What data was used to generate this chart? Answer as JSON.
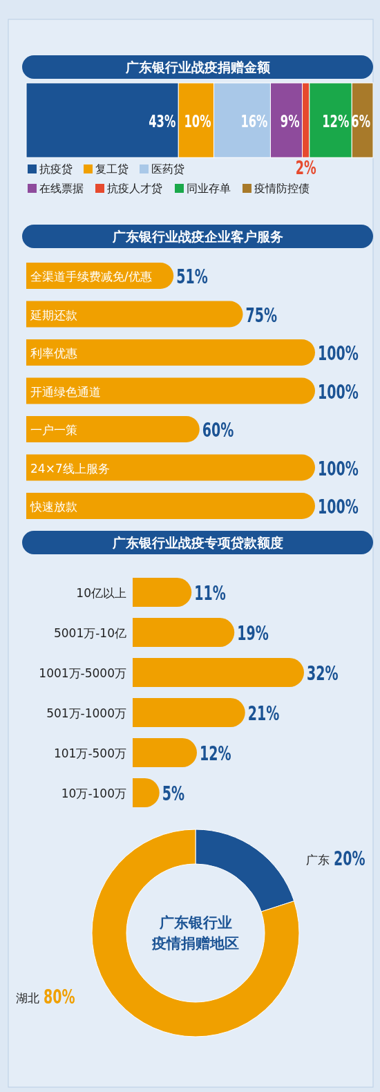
{
  "chart_data": [
    {
      "type": "bar",
      "title": "广东银行业战疫捐赠金额",
      "orientation": "horizontal",
      "stacked": true,
      "legend": "bottom",
      "categories": [
        null
      ],
      "series": [
        {
          "name": "抗疫贷",
          "color": "#1b5394",
          "values": [
            43
          ],
          "value_labels": [
            "43%"
          ]
        },
        {
          "name": "复工贷",
          "color": "#f0a000",
          "values": [
            10
          ],
          "value_labels": [
            "10%"
          ]
        },
        {
          "name": "医药贷",
          "color": "#a9c8e8",
          "values": [
            16
          ],
          "value_labels": [
            "16%"
          ]
        },
        {
          "name": "在线票据",
          "color": "#8e4b9c",
          "values": [
            9
          ],
          "value_labels": [
            "9%"
          ]
        },
        {
          "name": "抗疫人才贷",
          "color": "#e64a2e",
          "values": [
            2
          ],
          "value_labels": [
            "2%"
          ]
        },
        {
          "name": "同业存单",
          "color": "#1aa84a",
          "values": [
            12
          ],
          "value_labels": [
            "12%"
          ]
        },
        {
          "name": "疫情防控债",
          "color": "#a87a2a",
          "values": [
            6
          ],
          "value_labels": [
            "6%"
          ]
        }
      ]
    },
    {
      "type": "bar",
      "title": "广东银行业战疫企业客户服务",
      "orientation": "horizontal",
      "color": "#f0a000",
      "categories": [
        "全渠道手续费减免/优惠",
        "延期还款",
        "利率优惠",
        "开通绿色通道",
        "一户一策",
        "24×7线上服务",
        "快速放款"
      ],
      "values": [
        51,
        75,
        100,
        100,
        60,
        100,
        100
      ],
      "value_labels": [
        "51%",
        "75%",
        "100%",
        "100%",
        "60%",
        "100%",
        "100%"
      ]
    },
    {
      "type": "bar",
      "title": "广东银行业战疫专项贷款额度",
      "orientation": "horizontal",
      "color": "#f0a000",
      "categories": [
        "10亿以上",
        "5001万-10亿",
        "1001万-5000万",
        "501万-1000万",
        "101万-500万",
        "10万-100万"
      ],
      "values": [
        11,
        19,
        32,
        21,
        12,
        5
      ],
      "value_labels": [
        "11%",
        "19%",
        "32%",
        "21%",
        "12%",
        "5%"
      ]
    },
    {
      "type": "donut",
      "title": "广东银行业疫情捐赠地区",
      "categories": [
        "广东",
        "湖北"
      ],
      "values": [
        20,
        80
      ],
      "colors": [
        "#1b5394",
        "#f0a000"
      ],
      "value_labels": [
        "20%",
        "80%"
      ]
    }
  ]
}
